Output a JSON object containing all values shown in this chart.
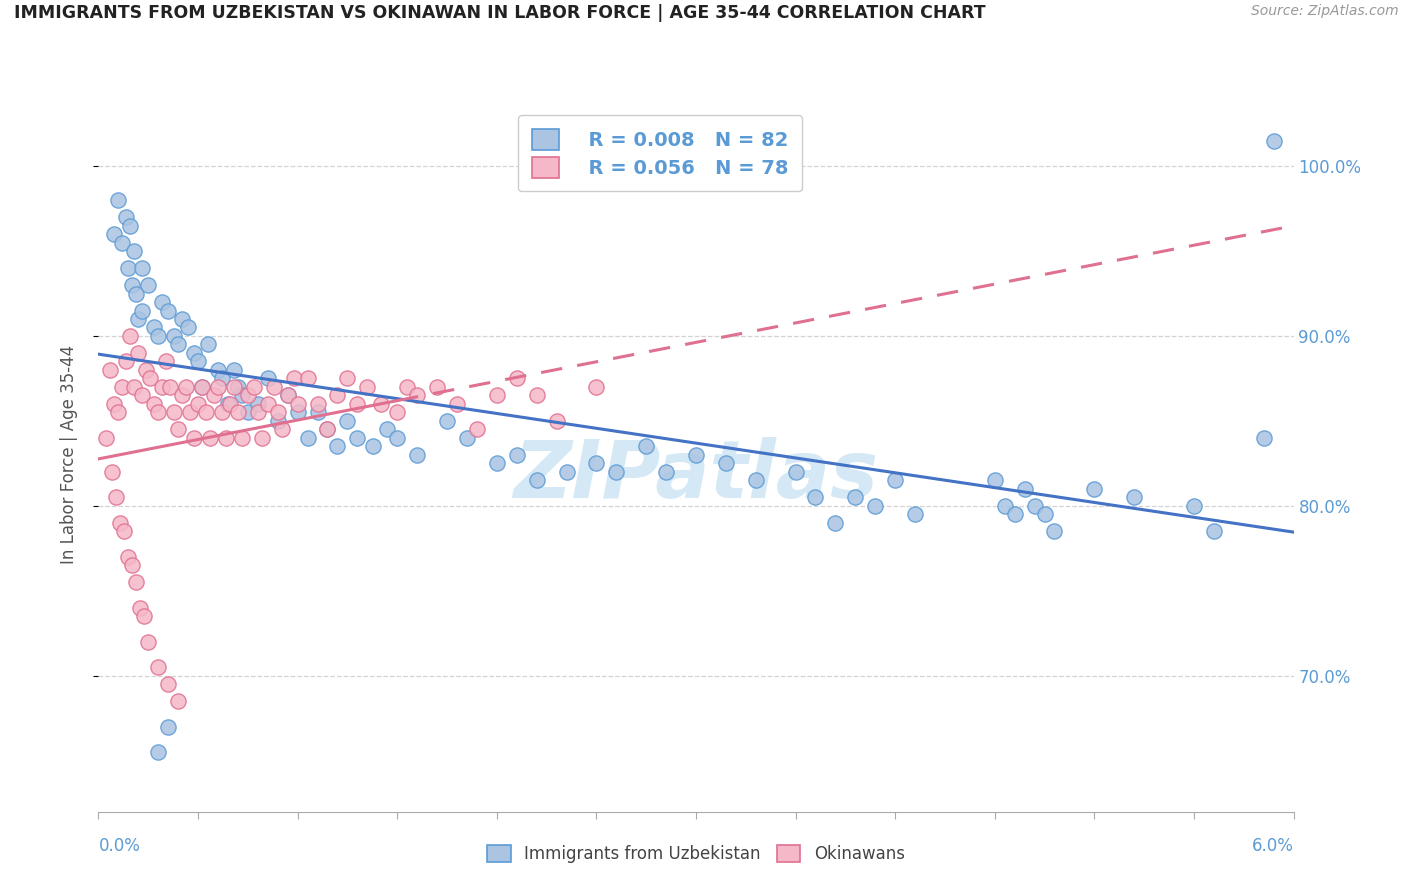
{
  "title": "IMMIGRANTS FROM UZBEKISTAN VS OKINAWAN IN LABOR FORCE | AGE 35-44 CORRELATION CHART",
  "source": "Source: ZipAtlas.com",
  "legend1_label": "Immigrants from Uzbekistan",
  "legend2_label": "Okinawans",
  "legend_r1": "R = 0.008",
  "legend_n1": "N = 82",
  "legend_r2": "R = 0.056",
  "legend_n2": "N = 78",
  "uzbekistan_color": "#aac4e2",
  "uzbekistan_edge_color": "#5b9bd5",
  "okinawan_color": "#f5b8c8",
  "okinawan_edge_color": "#e07090",
  "uzbekistan_line_color": "#4472c4",
  "okinawan_line_color": "#e07090",
  "background_color": "#ffffff",
  "watermark_color": "#d5e8f5",
  "xmin": 0.0,
  "xmax": 6.0,
  "ymin": 62.0,
  "ymax": 104.0,
  "yticks": [
    70.0,
    80.0,
    90.0,
    100.0
  ],
  "uzbekistan_x": [
    0.08,
    0.1,
    0.12,
    0.14,
    0.15,
    0.16,
    0.17,
    0.18,
    0.19,
    0.2,
    0.22,
    0.22,
    0.25,
    0.28,
    0.3,
    0.32,
    0.35,
    0.38,
    0.4,
    0.42,
    0.45,
    0.48,
    0.5,
    0.52,
    0.55,
    0.6,
    0.62,
    0.65,
    0.68,
    0.7,
    0.72,
    0.75,
    0.8,
    0.85,
    0.9,
    0.95,
    1.0,
    1.05,
    1.1,
    1.15,
    1.2,
    1.25,
    1.3,
    1.38,
    1.45,
    1.5,
    1.6,
    1.75,
    1.85,
    2.0,
    2.1,
    2.2,
    2.35,
    2.5,
    2.6,
    2.75,
    2.85,
    3.0,
    3.15,
    3.3,
    3.5,
    3.6,
    3.7,
    3.8,
    3.9,
    4.0,
    4.1,
    4.5,
    4.55,
    4.6,
    4.65,
    4.7,
    4.75,
    4.8,
    5.0,
    5.2,
    5.5,
    5.6,
    5.85,
    5.9,
    0.35,
    0.3
  ],
  "uzbekistan_y": [
    96.0,
    98.0,
    95.5,
    97.0,
    94.0,
    96.5,
    93.0,
    95.0,
    92.5,
    91.0,
    94.0,
    91.5,
    93.0,
    90.5,
    90.0,
    92.0,
    91.5,
    90.0,
    89.5,
    91.0,
    90.5,
    89.0,
    88.5,
    87.0,
    89.5,
    88.0,
    87.5,
    86.0,
    88.0,
    87.0,
    86.5,
    85.5,
    86.0,
    87.5,
    85.0,
    86.5,
    85.5,
    84.0,
    85.5,
    84.5,
    83.5,
    85.0,
    84.0,
    83.5,
    84.5,
    84.0,
    83.0,
    85.0,
    84.0,
    82.5,
    83.0,
    81.5,
    82.0,
    82.5,
    82.0,
    83.5,
    82.0,
    83.0,
    82.5,
    81.5,
    82.0,
    80.5,
    79.0,
    80.5,
    80.0,
    81.5,
    79.5,
    81.5,
    80.0,
    79.5,
    81.0,
    80.0,
    79.5,
    78.5,
    81.0,
    80.5,
    80.0,
    78.5,
    84.0,
    101.5,
    67.0,
    65.5
  ],
  "okinawan_x": [
    0.04,
    0.06,
    0.08,
    0.1,
    0.12,
    0.14,
    0.16,
    0.18,
    0.2,
    0.22,
    0.24,
    0.26,
    0.28,
    0.3,
    0.32,
    0.34,
    0.36,
    0.38,
    0.4,
    0.42,
    0.44,
    0.46,
    0.48,
    0.5,
    0.52,
    0.54,
    0.56,
    0.58,
    0.6,
    0.62,
    0.64,
    0.66,
    0.68,
    0.7,
    0.72,
    0.75,
    0.78,
    0.8,
    0.82,
    0.85,
    0.88,
    0.9,
    0.92,
    0.95,
    0.98,
    1.0,
    1.05,
    1.1,
    1.15,
    1.2,
    1.25,
    1.3,
    1.35,
    1.42,
    1.5,
    1.55,
    1.6,
    1.7,
    1.8,
    1.9,
    2.0,
    2.1,
    2.2,
    2.3,
    2.5,
    0.07,
    0.09,
    0.11,
    0.13,
    0.15,
    0.17,
    0.19,
    0.21,
    0.23,
    0.25,
    0.3,
    0.35,
    0.4
  ],
  "okinawan_y": [
    84.0,
    88.0,
    86.0,
    85.5,
    87.0,
    88.5,
    90.0,
    87.0,
    89.0,
    86.5,
    88.0,
    87.5,
    86.0,
    85.5,
    87.0,
    88.5,
    87.0,
    85.5,
    84.5,
    86.5,
    87.0,
    85.5,
    84.0,
    86.0,
    87.0,
    85.5,
    84.0,
    86.5,
    87.0,
    85.5,
    84.0,
    86.0,
    87.0,
    85.5,
    84.0,
    86.5,
    87.0,
    85.5,
    84.0,
    86.0,
    87.0,
    85.5,
    84.5,
    86.5,
    87.5,
    86.0,
    87.5,
    86.0,
    84.5,
    86.5,
    87.5,
    86.0,
    87.0,
    86.0,
    85.5,
    87.0,
    86.5,
    87.0,
    86.0,
    84.5,
    86.5,
    87.5,
    86.5,
    85.0,
    87.0,
    82.0,
    80.5,
    79.0,
    78.5,
    77.0,
    76.5,
    75.5,
    74.0,
    73.5,
    72.0,
    70.5,
    69.5,
    68.5
  ]
}
